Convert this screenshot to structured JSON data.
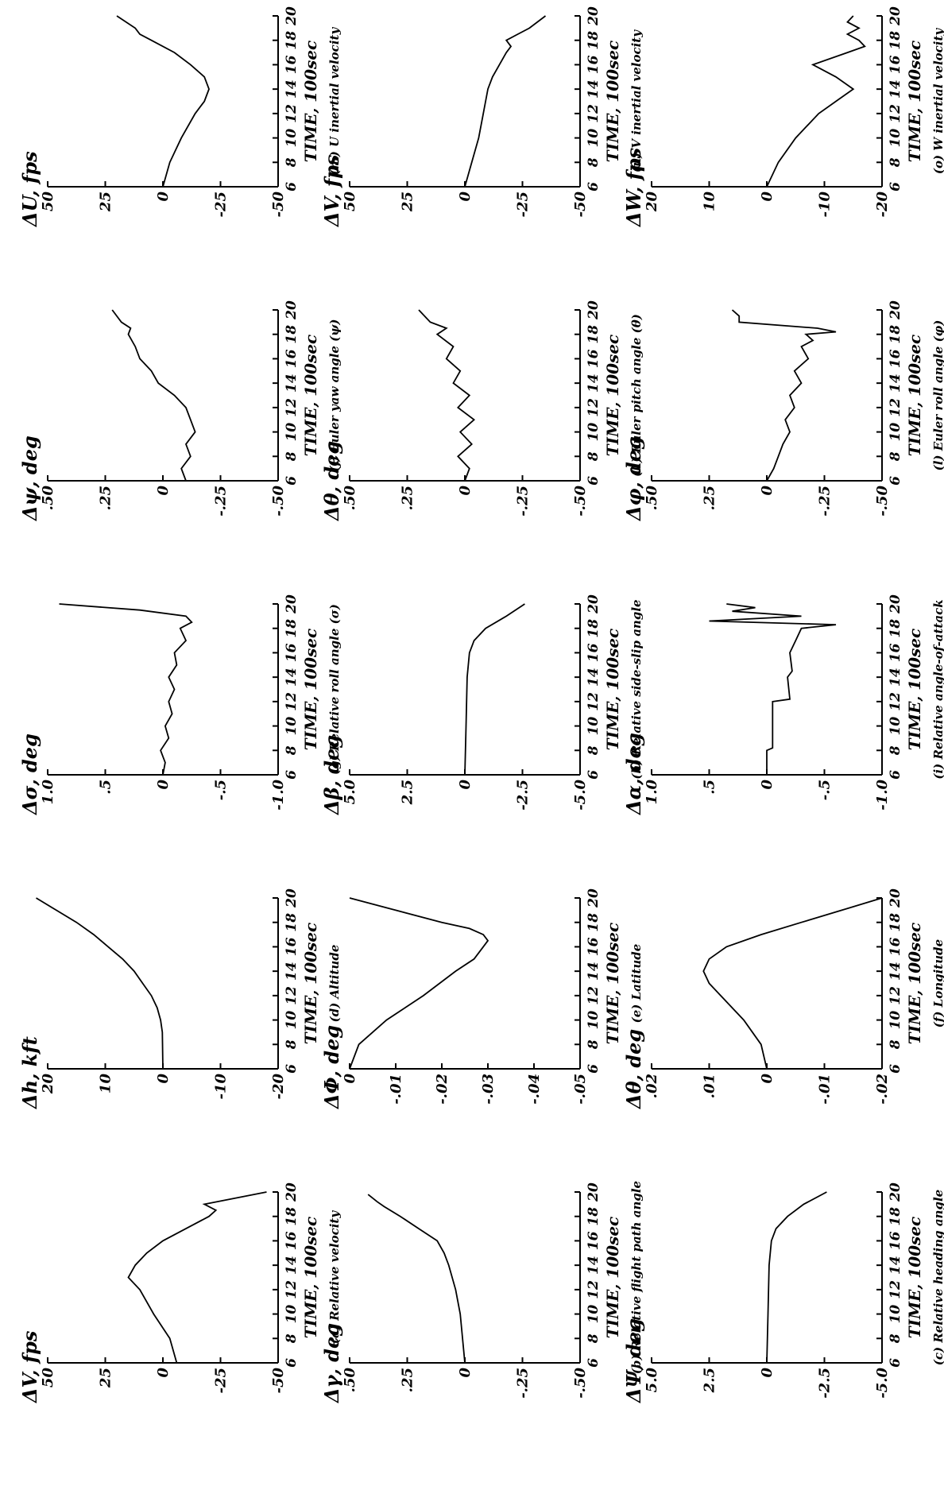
{
  "chart_data": [
    {
      "id": "a",
      "type": "line",
      "ylabel": "ΔV, fps",
      "xlabel": "TIME, 100sec",
      "caption": "(a) Relative velocity",
      "xlim": [
        6,
        20
      ],
      "ylim": [
        -50,
        50
      ],
      "xticks": [
        6,
        8,
        10,
        12,
        14,
        16,
        18,
        20
      ],
      "xtick_labels": [
        "6",
        "8",
        "10",
        "12",
        "14",
        "16",
        "18",
        "20"
      ],
      "yticks": [
        50,
        25,
        0,
        -25,
        -50
      ],
      "ytick_labels": [
        "50",
        "25",
        "0",
        "-25",
        "-50"
      ],
      "series": [
        {
          "x": [
            6,
            8,
            10,
            12,
            13,
            14,
            15,
            16,
            17,
            18,
            18.5,
            19,
            20
          ],
          "y": [
            -6,
            -3,
            4,
            10,
            15,
            12,
            7,
            0,
            -10,
            -20,
            -23,
            -18,
            -45
          ]
        }
      ]
    },
    {
      "id": "b",
      "type": "line",
      "ylabel": "Δγ, deg",
      "xlabel": "TIME, 100sec",
      "caption": "(b) Relative flight path angle",
      "xlim": [
        6,
        20
      ],
      "ylim": [
        -0.5,
        0.5
      ],
      "xticks": [
        6,
        8,
        10,
        12,
        14,
        16,
        18,
        20
      ],
      "xtick_labels": [
        "6",
        "8",
        "10",
        "12",
        "14",
        "16",
        "18",
        "20"
      ],
      "yticks": [
        0.5,
        0.25,
        0,
        -0.25,
        -0.5
      ],
      "ytick_labels": [
        ".50",
        ".25",
        "0",
        "-.25",
        "-.50"
      ],
      "series": [
        {
          "x": [
            6,
            8,
            10,
            12,
            14,
            15,
            16,
            17,
            18,
            18.8,
            19.2,
            19.8
          ],
          "y": [
            0,
            0.01,
            0.02,
            0.04,
            0.07,
            0.09,
            0.12,
            0.2,
            0.28,
            0.35,
            0.38,
            0.42
          ]
        }
      ]
    },
    {
      "id": "c",
      "type": "line",
      "ylabel": "ΔΨ, deg",
      "xlabel": "TIME, 100sec",
      "caption": "(c) Relative heading angle",
      "xlim": [
        6,
        20
      ],
      "ylim": [
        -5,
        5
      ],
      "xticks": [
        6,
        8,
        10,
        12,
        14,
        16,
        18,
        20
      ],
      "xtick_labels": [
        "6",
        "8",
        "10",
        "12",
        "14",
        "16",
        "18",
        "20"
      ],
      "yticks": [
        5,
        2.5,
        0,
        -2.5,
        -5
      ],
      "ytick_labels": [
        "5.0",
        "2.5",
        "0",
        "-2.5",
        "-5.0"
      ],
      "series": [
        {
          "x": [
            6,
            10,
            14,
            16,
            17,
            18,
            19,
            20
          ],
          "y": [
            0,
            -0.05,
            -0.1,
            -0.2,
            -0.4,
            -0.9,
            -1.6,
            -2.6
          ]
        }
      ]
    },
    {
      "id": "d",
      "type": "line",
      "ylabel": "Δh, kft",
      "xlabel": "TIME, 100sec",
      "caption": "(d) Altitude",
      "xlim": [
        6,
        20
      ],
      "ylim": [
        -20,
        20
      ],
      "xticks": [
        6,
        8,
        10,
        12,
        14,
        16,
        18,
        20
      ],
      "xtick_labels": [
        "6",
        "8",
        "10",
        "12",
        "14",
        "16",
        "18",
        "20"
      ],
      "yticks": [
        20,
        10,
        0,
        -10,
        -20
      ],
      "ytick_labels": [
        "20",
        "10",
        "0",
        "-10",
        "-20"
      ],
      "series": [
        {
          "x": [
            6,
            9,
            10,
            11,
            12,
            13,
            14,
            15,
            16,
            17,
            18,
            19,
            20
          ],
          "y": [
            0,
            0.1,
            0.4,
            1,
            2,
            3.5,
            5,
            7,
            9.5,
            12,
            15,
            18.5,
            22
          ]
        }
      ]
    },
    {
      "id": "e",
      "type": "line",
      "ylabel": "ΔΦ, deg",
      "xlabel": "TIME, 100sec",
      "caption": "(e) Latitude",
      "xlim": [
        6,
        20
      ],
      "ylim": [
        -0.05,
        0.0
      ],
      "xticks": [
        6,
        8,
        10,
        12,
        14,
        16,
        18,
        20
      ],
      "xtick_labels": [
        "6",
        "8",
        "10",
        "12",
        "14",
        "16",
        "18",
        "20"
      ],
      "yticks": [
        0,
        -0.01,
        -0.02,
        -0.03,
        -0.04,
        -0.05
      ],
      "ytick_labels": [
        "0",
        "-.01",
        "-.02",
        "-.03",
        "-.04",
        "-.05"
      ],
      "series": [
        {
          "x": [
            6,
            8,
            10,
            12,
            14,
            15,
            16,
            16.5,
            17,
            17.5,
            18,
            19,
            20
          ],
          "y": [
            0,
            -0.002,
            -0.008,
            -0.016,
            -0.023,
            -0.027,
            -0.029,
            -0.03,
            -0.029,
            -0.026,
            -0.02,
            -0.01,
            0.0
          ]
        }
      ]
    },
    {
      "id": "f",
      "type": "line",
      "ylabel": "Δθ, deg",
      "xlabel": "TIME, 100sec",
      "caption": "(f) Longitude",
      "xlim": [
        6,
        20
      ],
      "ylim": [
        -0.02,
        0.02
      ],
      "xticks": [
        6,
        8,
        10,
        12,
        14,
        16,
        18,
        20
      ],
      "xtick_labels": [
        "6",
        "8",
        "10",
        "12",
        "14",
        "16",
        "18",
        "20"
      ],
      "yticks": [
        0.02,
        0.01,
        0,
        -0.01,
        -0.02
      ],
      "ytick_labels": [
        ".02",
        ".01",
        "0",
        "-.01",
        "-.02"
      ],
      "series": [
        {
          "x": [
            6,
            8,
            10,
            12,
            13,
            14,
            15,
            16,
            17,
            18,
            19,
            20
          ],
          "y": [
            0,
            0.001,
            0.004,
            0.008,
            0.01,
            0.011,
            0.01,
            0.007,
            0.001,
            -0.006,
            -0.013,
            -0.02
          ]
        }
      ]
    },
    {
      "id": "g",
      "type": "line",
      "ylabel": "Δσ, deg",
      "xlabel": "TIME, 100sec",
      "caption": "(g) Relative roll angle (σ)",
      "xlim": [
        6,
        20
      ],
      "ylim": [
        -1.0,
        1.0
      ],
      "xticks": [
        6,
        8,
        10,
        12,
        14,
        16,
        18,
        20
      ],
      "xtick_labels": [
        "6",
        "8",
        "10",
        "12",
        "14",
        "16",
        "18",
        "20"
      ],
      "yticks": [
        1.0,
        0.5,
        0,
        -0.5,
        -1.0
      ],
      "ytick_labels": [
        "1.0",
        ".5",
        "0",
        "-.5",
        "-1.0"
      ],
      "series": [
        {
          "x": [
            6,
            7,
            8,
            9,
            10,
            11,
            12,
            13,
            14,
            15,
            16,
            17,
            18,
            18.5,
            19,
            19.5,
            20
          ],
          "y": [
            0,
            -0.02,
            0.02,
            -0.05,
            -0.02,
            -0.08,
            -0.05,
            -0.1,
            -0.05,
            -0.12,
            -0.1,
            -0.2,
            -0.15,
            -0.25,
            -0.2,
            0.2,
            0.9
          ]
        }
      ]
    },
    {
      "id": "h",
      "type": "line",
      "ylabel": "Δβ, deg",
      "xlabel": "TIME, 100sec",
      "caption": "(h) Relative side-slip angle",
      "xlim": [
        6,
        20
      ],
      "ylim": [
        -5.0,
        5.0
      ],
      "xticks": [
        6,
        8,
        10,
        12,
        14,
        16,
        18,
        20
      ],
      "xtick_labels": [
        "6",
        "8",
        "10",
        "12",
        "14",
        "16",
        "18",
        "20"
      ],
      "yticks": [
        5.0,
        2.5,
        0,
        -2.5,
        -5.0
      ],
      "ytick_labels": [
        "5.0",
        "2.5",
        "0",
        "-2.5",
        "-5.0"
      ],
      "series": [
        {
          "x": [
            6,
            10,
            14,
            16,
            17,
            18,
            19,
            20
          ],
          "y": [
            0,
            -0.05,
            -0.1,
            -0.2,
            -0.4,
            -0.9,
            -1.8,
            -2.6
          ]
        }
      ]
    },
    {
      "id": "i",
      "type": "line",
      "ylabel": "Δα, deg",
      "xlabel": "TIME, 100sec",
      "caption": "(i) Relative angle-of-attack",
      "xlim": [
        6,
        20
      ],
      "ylim": [
        -1.0,
        1.0
      ],
      "xticks": [
        6,
        8,
        10,
        12,
        14,
        16,
        18,
        20
      ],
      "xtick_labels": [
        "6",
        "8",
        "10",
        "12",
        "14",
        "16",
        "18",
        "20"
      ],
      "yticks": [
        1.0,
        0.5,
        0,
        -0.5,
        -1.0
      ],
      "ytick_labels": [
        "1.0",
        ".5",
        "0",
        "-.5",
        "-1.0"
      ],
      "series": [
        {
          "x": [
            6,
            7,
            8,
            8.2,
            10,
            12,
            12.2,
            14,
            14.5,
            16,
            17,
            18,
            18.3,
            18.6,
            19,
            19.4,
            19.7,
            20
          ],
          "y": [
            0,
            0,
            0,
            -0.05,
            -0.05,
            -0.05,
            -0.2,
            -0.18,
            -0.22,
            -0.2,
            -0.25,
            -0.3,
            -0.6,
            0.5,
            -0.3,
            0.3,
            0.1,
            0.35
          ]
        }
      ]
    },
    {
      "id": "j",
      "type": "line",
      "ylabel": "Δψ, deg",
      "xlabel": "TIME, 100sec",
      "caption": "(j) Euler yaw angle (ψ)",
      "xlim": [
        6,
        20
      ],
      "ylim": [
        -0.5,
        0.5
      ],
      "xticks": [
        6,
        8,
        10,
        12,
        14,
        16,
        18,
        20
      ],
      "xtick_labels": [
        "6",
        "8",
        "10",
        "12",
        "14",
        "16",
        "18",
        "20"
      ],
      "yticks": [
        0.5,
        0.25,
        0,
        -0.25,
        -0.5
      ],
      "ytick_labels": [
        ".50",
        ".25",
        "0",
        "-.25",
        "-.50"
      ],
      "series": [
        {
          "x": [
            6,
            7,
            8,
            9,
            10,
            11,
            12,
            13,
            14,
            15,
            16,
            17,
            18,
            18.5,
            19,
            20
          ],
          "y": [
            -0.1,
            -0.08,
            -0.12,
            -0.1,
            -0.14,
            -0.12,
            -0.1,
            -0.05,
            0.02,
            0.05,
            0.1,
            0.12,
            0.15,
            0.14,
            0.18,
            0.22
          ]
        }
      ]
    },
    {
      "id": "k",
      "type": "line",
      "ylabel": "Δθ, deg",
      "xlabel": "TIME, 100sec",
      "caption": "(k) Euler pitch angle (θ)",
      "xlim": [
        6,
        20
      ],
      "ylim": [
        -0.5,
        0.5
      ],
      "xticks": [
        6,
        8,
        10,
        12,
        14,
        16,
        18,
        20
      ],
      "xtick_labels": [
        "6",
        "8",
        "10",
        "12",
        "14",
        "16",
        "18",
        "20"
      ],
      "yticks": [
        0.5,
        0.25,
        0,
        -0.25,
        -0.5
      ],
      "ytick_labels": [
        ".50",
        ".25",
        "0",
        "-.25",
        "-.50"
      ],
      "series": [
        {
          "x": [
            6,
            7,
            8,
            9,
            10,
            11,
            12,
            13,
            14,
            15,
            16,
            17,
            18,
            18.5,
            19,
            20
          ],
          "y": [
            0,
            -0.02,
            0.03,
            -0.03,
            0.02,
            -0.04,
            0.03,
            -0.02,
            0.05,
            0.02,
            0.08,
            0.05,
            0.12,
            0.08,
            0.15,
            0.2
          ]
        }
      ]
    },
    {
      "id": "l",
      "type": "line",
      "ylabel": "Δφ, deg",
      "xlabel": "TIME, 100sec",
      "caption": "(l) Euler roll angle (φ)",
      "xlim": [
        6,
        20
      ],
      "ylim": [
        -0.5,
        0.5
      ],
      "xticks": [
        6,
        8,
        10,
        12,
        14,
        16,
        18,
        20
      ],
      "xtick_labels": [
        "6",
        "8",
        "10",
        "12",
        "14",
        "16",
        "18",
        "20"
      ],
      "yticks": [
        0.5,
        0.25,
        0,
        -0.25,
        -0.5
      ],
      "ytick_labels": [
        ".50",
        ".25",
        "0",
        "-.25",
        "-.50"
      ],
      "series": [
        {
          "x": [
            6,
            7,
            8,
            9,
            10,
            11,
            12,
            13,
            14,
            15,
            16,
            17,
            17.5,
            18,
            18.2,
            18.5,
            19,
            19.5,
            20
          ],
          "y": [
            0,
            -0.03,
            -0.05,
            -0.07,
            -0.1,
            -0.08,
            -0.12,
            -0.1,
            -0.15,
            -0.12,
            -0.18,
            -0.15,
            -0.2,
            -0.17,
            -0.3,
            -0.22,
            0.12,
            0.12,
            0.15
          ]
        }
      ]
    },
    {
      "id": "m",
      "type": "line",
      "ylabel": "ΔU, fps",
      "xlabel": "TIME, 100sec",
      "caption": "(m) U inertial velocity",
      "xlim": [
        6,
        20
      ],
      "ylim": [
        -50,
        50
      ],
      "xticks": [
        6,
        8,
        10,
        12,
        14,
        16,
        18,
        20
      ],
      "xtick_labels": [
        "6",
        "8",
        "10",
        "12",
        "14",
        "16",
        "18",
        "20"
      ],
      "yticks": [
        50,
        25,
        0,
        -25,
        -50
      ],
      "ytick_labels": [
        "50",
        "25",
        "0",
        "-25",
        "-50"
      ],
      "series": [
        {
          "x": [
            6,
            8,
            10,
            12,
            13,
            14,
            15,
            16,
            17,
            18,
            18.5,
            19,
            20
          ],
          "y": [
            0,
            -3,
            -8,
            -14,
            -18,
            -20,
            -18,
            -12,
            -5,
            5,
            10,
            12,
            20
          ]
        }
      ]
    },
    {
      "id": "n",
      "type": "line",
      "ylabel": "ΔV, fps",
      "xlabel": "TIME, 100sec",
      "caption": "(n) V inertial velocity",
      "xlim": [
        6,
        20
      ],
      "ylim": [
        -50,
        50
      ],
      "xticks": [
        6,
        8,
        10,
        12,
        14,
        16,
        18,
        20
      ],
      "xtick_labels": [
        "6",
        "8",
        "10",
        "12",
        "14",
        "16",
        "18",
        "20"
      ],
      "yticks": [
        50,
        25,
        0,
        -25,
        -50
      ],
      "ytick_labels": [
        "50",
        "25",
        "0",
        "-25",
        "-50"
      ],
      "series": [
        {
          "x": [
            6,
            8,
            10,
            12,
            13,
            14,
            15,
            16,
            17,
            17.5,
            18,
            18.5,
            19,
            20
          ],
          "y": [
            0,
            -3,
            -6,
            -8,
            -9,
            -10,
            -12,
            -15,
            -18,
            -20,
            -18,
            -23,
            -28,
            -35
          ]
        }
      ]
    },
    {
      "id": "o",
      "type": "line",
      "ylabel": "ΔW, fps",
      "xlabel": "TIME, 100sec",
      "caption": "(o) W inertial velocity",
      "xlim": [
        6,
        20
      ],
      "ylim": [
        -20,
        20
      ],
      "xticks": [
        6,
        8,
        10,
        12,
        14,
        16,
        18,
        20
      ],
      "xtick_labels": [
        "6",
        "8",
        "10",
        "12",
        "14",
        "16",
        "18",
        "20"
      ],
      "yticks": [
        20,
        10,
        0,
        -10,
        -20
      ],
      "ytick_labels": [
        "20",
        "10",
        "0",
        "-10",
        "-20"
      ],
      "series": [
        {
          "x": [
            6,
            8,
            10,
            12,
            13,
            14,
            15,
            16,
            17,
            17.5,
            18,
            18.5,
            19,
            19.5,
            20
          ],
          "y": [
            0,
            -2,
            -5,
            -9,
            -12,
            -15,
            -12,
            -8,
            -14,
            -17,
            -16,
            -14,
            -16,
            -14,
            -15
          ]
        }
      ]
    }
  ]
}
